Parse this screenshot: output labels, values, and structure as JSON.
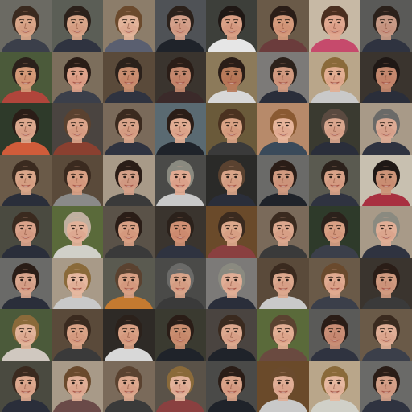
{
  "grid": {
    "rows": 8,
    "cols": 8,
    "tiles": [
      {
        "bg": "#6b6a63",
        "hair": "#3a2a1f",
        "skin": "#d9a689",
        "shirt": "#3b3f4a"
      },
      {
        "bg": "#5b5e56",
        "hair": "#2b211b",
        "skin": "#d8a589",
        "shirt": "#2f3340"
      },
      {
        "bg": "#8c7d6a",
        "hair": "#6b4a2d",
        "skin": "#e2b49a",
        "shirt": "#5a5f70"
      },
      {
        "bg": "#4f5256",
        "hair": "#2b211b",
        "skin": "#d3a08a",
        "shirt": "#1f232a"
      },
      {
        "bg": "#3d3f3a",
        "hair": "#1f1815",
        "skin": "#d9a086",
        "shirt": "#e6e6e6"
      },
      {
        "bg": "#6a5a48",
        "hair": "#2a1d17",
        "skin": "#d49a7c",
        "shirt": "#6b3c3c"
      },
      {
        "bg": "#c7b9a5",
        "hair": "#4a2f20",
        "skin": "#e0a890",
        "shirt": "#c64a6c"
      },
      {
        "bg": "#5a5a58",
        "hair": "#2b211b",
        "skin": "#c89a86",
        "shirt": "#2f3340"
      },
      {
        "bg": "#4b5a3a",
        "hair": "#2b211b",
        "skin": "#d49a78",
        "shirt": "#b0453b"
      },
      {
        "bg": "#7c6e5c",
        "hair": "#2a1d17",
        "skin": "#dea28a",
        "shirt": "#3b3f4a"
      },
      {
        "bg": "#5a4a3a",
        "hair": "#2b211b",
        "skin": "#c98e70",
        "shirt": "#2f3340"
      },
      {
        "bg": "#3a342e",
        "hair": "#2a1d17",
        "skin": "#c4886e",
        "shirt": "#3b2a2a"
      },
      {
        "bg": "#8c7a5a",
        "hair": "#2a1d17",
        "skin": "#b77a5a",
        "shirt": "#d8d8d8"
      },
      {
        "bg": "#7c7a78",
        "hair": "#2b211b",
        "skin": "#d19a80",
        "shirt": "#2a2e3a"
      },
      {
        "bg": "#b9a68a",
        "hair": "#8a6a3a",
        "skin": "#e2ae92",
        "shirt": "#c9c9c9"
      },
      {
        "bg": "#3a342e",
        "hair": "#1f1815",
        "skin": "#c4886e",
        "shirt": "#2a2e3a"
      },
      {
        "bg": "#2e3a2a",
        "hair": "#2a1d17",
        "skin": "#dca88e",
        "shirt": "#d05c3a"
      },
      {
        "bg": "#4a4440",
        "hair": "#5a4230",
        "skin": "#dba48a",
        "shirt": "#8a4030"
      },
      {
        "bg": "#7a6a5a",
        "hair": "#3a2a1f",
        "skin": "#d8a48a",
        "shirt": "#2f3340"
      },
      {
        "bg": "#5a6a72",
        "hair": "#2a1d17",
        "skin": "#e0ac92",
        "shirt": "#1f232a"
      },
      {
        "bg": "#6a5a3a",
        "hair": "#4a3220",
        "skin": "#d8a284",
        "shirt": "#3a3a3a"
      },
      {
        "bg": "#b78a6a",
        "hair": "#8a5a32",
        "skin": "#e6b49a",
        "shirt": "#3a4a5a"
      },
      {
        "bg": "#3a3a30",
        "hair": "#5a4a40",
        "skin": "#d9a68e",
        "shirt": "#2a2e3a"
      },
      {
        "bg": "#a89a88",
        "hair": "#6a6a68",
        "skin": "#dcaa94",
        "shirt": "#2f3340"
      },
      {
        "bg": "#6a5a48",
        "hair": "#3a2a1f",
        "skin": "#d9a68a",
        "shirt": "#2a2e3a"
      },
      {
        "bg": "#5a4a3a",
        "hair": "#3a2a1f",
        "skin": "#d8a084",
        "shirt": "#8a8a88"
      },
      {
        "bg": "#a89a88",
        "hair": "#2a1d17",
        "skin": "#d4a088",
        "shirt": "#3a3a3a"
      },
      {
        "bg": "#4a4a48",
        "hair": "#8a8a80",
        "skin": "#e0aa92",
        "shirt": "#c9c9c9"
      },
      {
        "bg": "#2a2a28",
        "hair": "#5a4230",
        "skin": "#d8a488",
        "shirt": "#2a2e3a"
      },
      {
        "bg": "#6a6a68",
        "hair": "#2a1d17",
        "skin": "#d09a80",
        "shirt": "#1f232a"
      },
      {
        "bg": "#5a5a50",
        "hair": "#2b211b",
        "skin": "#d8a288",
        "shirt": "#2f3340"
      },
      {
        "bg": "#c8c0b0",
        "hair": "#1f1815",
        "skin": "#cc9478",
        "shirt": "#a83040"
      },
      {
        "bg": "#4a4a40",
        "hair": "#3a2a1f",
        "skin": "#d9a28a",
        "shirt": "#2a2e3a"
      },
      {
        "bg": "#5a6a3a",
        "hair": "#c0b0a0",
        "skin": "#e2b29a",
        "shirt": "#d0d0c8"
      },
      {
        "bg": "#5a5248",
        "hair": "#2a1d17",
        "skin": "#d8a084",
        "shirt": "#3a3a3a"
      },
      {
        "bg": "#3a342e",
        "hair": "#2b211b",
        "skin": "#d09074",
        "shirt": "#2f3340"
      },
      {
        "bg": "#6a4a2a",
        "hair": "#3a2a1f",
        "skin": "#dca88c",
        "shirt": "#8a4040"
      },
      {
        "bg": "#7a6a5a",
        "hair": "#3a2a1f",
        "skin": "#dca88e",
        "shirt": "#3a3a3a"
      },
      {
        "bg": "#2e3a2a",
        "hair": "#2b211b",
        "skin": "#d8a084",
        "shirt": "#3b3f4a"
      },
      {
        "bg": "#a89a88",
        "hair": "#8a8a80",
        "skin": "#e0ae96",
        "shirt": "#2f3340"
      },
      {
        "bg": "#6a6a68",
        "hair": "#2a1d17",
        "skin": "#d9a68e",
        "shirt": "#2a2e3a"
      },
      {
        "bg": "#a89a88",
        "hair": "#8a6a3a",
        "skin": "#e6b8a0",
        "shirt": "#c9c9c9"
      },
      {
        "bg": "#5a5a50",
        "hair": "#5a4230",
        "skin": "#d8a084",
        "shirt": "#c47a30"
      },
      {
        "bg": "#4a4a48",
        "hair": "#6a6a68",
        "skin": "#d8a48a",
        "shirt": "#3a3a3a"
      },
      {
        "bg": "#7c7a78",
        "hair": "#8a8a80",
        "skin": "#e0ae96",
        "shirt": "#2a2e3a"
      },
      {
        "bg": "#5a4a3a",
        "hair": "#3a2a1f",
        "skin": "#dca88e",
        "shirt": "#c9c9c9"
      },
      {
        "bg": "#6a5a48",
        "hair": "#6a4a2d",
        "skin": "#e0aa90",
        "shirt": "#3b3f4a"
      },
      {
        "bg": "#3a342e",
        "hair": "#2a1d17",
        "skin": "#d09a80",
        "shirt": "#3a3a3a"
      },
      {
        "bg": "#4b5a3a",
        "hair": "#8a6a3a",
        "skin": "#e2b49a",
        "shirt": "#d0c8c0"
      },
      {
        "bg": "#5a4a3a",
        "hair": "#3a2a1f",
        "skin": "#d9a286",
        "shirt": "#3a3a3a"
      },
      {
        "bg": "#2e2a26",
        "hair": "#2b211b",
        "skin": "#d8a084",
        "shirt": "#d8d8d8"
      },
      {
        "bg": "#3a3a30",
        "hair": "#2a1d17",
        "skin": "#c98e70",
        "shirt": "#1f232a"
      },
      {
        "bg": "#4a4440",
        "hair": "#3a2a1f",
        "skin": "#dca88e",
        "shirt": "#1f232a"
      },
      {
        "bg": "#5a6a3a",
        "hair": "#5a4230",
        "skin": "#e2ae94",
        "shirt": "#6a4a40"
      },
      {
        "bg": "#5a5a58",
        "hair": "#2a1d17",
        "skin": "#c98e76",
        "shirt": "#2f3340"
      },
      {
        "bg": "#6a5a48",
        "hair": "#3a2a1f",
        "skin": "#e0ae96",
        "shirt": "#3b3f4a"
      },
      {
        "bg": "#4a4a40",
        "hair": "#3a2a1f",
        "skin": "#dca88e",
        "shirt": "#2a2e3a"
      },
      {
        "bg": "#a89a88",
        "hair": "#6a4a2d",
        "skin": "#e0ae96",
        "shirt": "#6a4a48"
      },
      {
        "bg": "#7a6a5a",
        "hair": "#5a4230",
        "skin": "#dca88e",
        "shirt": "#3a3a3a"
      },
      {
        "bg": "#5a5248",
        "hair": "#8a6a3a",
        "skin": "#e2b29a",
        "shirt": "#8a4040"
      },
      {
        "bg": "#4a4a48",
        "hair": "#2a1d17",
        "skin": "#d8a288",
        "shirt": "#1f232a"
      },
      {
        "bg": "#6a4a2a",
        "hair": "#6a4a2d",
        "skin": "#e0ae96",
        "shirt": "#c9c9c9"
      },
      {
        "bg": "#b9a68a",
        "hair": "#8a6a3a",
        "skin": "#e6b8a0",
        "shirt": "#d0d0c8"
      },
      {
        "bg": "#6a6a68",
        "hair": "#2a1d17",
        "skin": "#d4a088",
        "shirt": "#2f3340"
      }
    ]
  }
}
